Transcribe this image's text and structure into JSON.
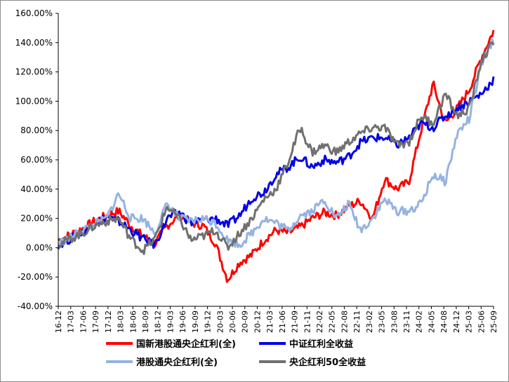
{
  "chart_data": {
    "type": "line",
    "y_ticks": [
      "160.00%",
      "140.00%",
      "120.00%",
      "100.00%",
      "80.00%",
      "60.00%",
      "40.00%",
      "20.00%",
      "0.00%",
      "-20.00%",
      "-40.00%"
    ],
    "ylim": [
      -40,
      160
    ],
    "x_ticks": [
      "16-12",
      "17-03",
      "17-06",
      "17-09",
      "17-12",
      "18-03",
      "18-06",
      "18-09",
      "18-12",
      "19-03",
      "19-06",
      "19-09",
      "19-12",
      "20-03",
      "20-06",
      "20-09",
      "20-12",
      "21-03",
      "21-06",
      "21-09",
      "21-11",
      "22-02",
      "22-05",
      "22-08",
      "22-11",
      "23-02",
      "23-05",
      "23-08",
      "23-11",
      "24-02",
      "24-05",
      "24-08",
      "24-12",
      "25-03",
      "25-06",
      "25-09"
    ],
    "grid": false,
    "legend_position": "bottom",
    "series": [
      {
        "name": "国新港股通央企红利(全)",
        "color": "#ff0000",
        "values": [
          5,
          9,
          13,
          18,
          22,
          25,
          15,
          8,
          3,
          15,
          22,
          17,
          15,
          3,
          -22,
          -10,
          -5,
          5,
          12,
          10,
          14,
          20,
          24,
          22,
          28,
          32,
          20,
          47,
          40,
          45,
          80,
          112,
          85,
          95,
          108,
          130,
          148
        ]
      },
      {
        "name": "中证红利全收益",
        "color": "#0000e6",
        "values": [
          2,
          6,
          10,
          17,
          21,
          18,
          12,
          6,
          2,
          20,
          24,
          17,
          19,
          20,
          15,
          22,
          34,
          38,
          50,
          55,
          62,
          55,
          60,
          58,
          62,
          72,
          75,
          75,
          70,
          75,
          85,
          82,
          90,
          95,
          100,
          105,
          115
        ]
      },
      {
        "name": "港股通央企红利(全)",
        "color": "#95b3e0",
        "values": [
          3,
          7,
          12,
          16,
          20,
          37,
          20,
          20,
          10,
          30,
          20,
          18,
          20,
          17,
          5,
          2,
          10,
          20,
          17,
          12,
          22,
          25,
          33,
          20,
          30,
          12,
          20,
          33,
          25,
          25,
          30,
          50,
          45,
          78,
          88,
          125,
          142
        ]
      },
      {
        "name": "央企红利50全收益",
        "color": "#707070",
        "values": [
          2,
          6,
          10,
          15,
          18,
          20,
          6,
          -2,
          6,
          28,
          20,
          5,
          8,
          12,
          0,
          10,
          20,
          33,
          40,
          58,
          82,
          65,
          70,
          65,
          72,
          78,
          82,
          82,
          70,
          72,
          90,
          85,
          105,
          90,
          95,
          128,
          140
        ]
      }
    ]
  }
}
